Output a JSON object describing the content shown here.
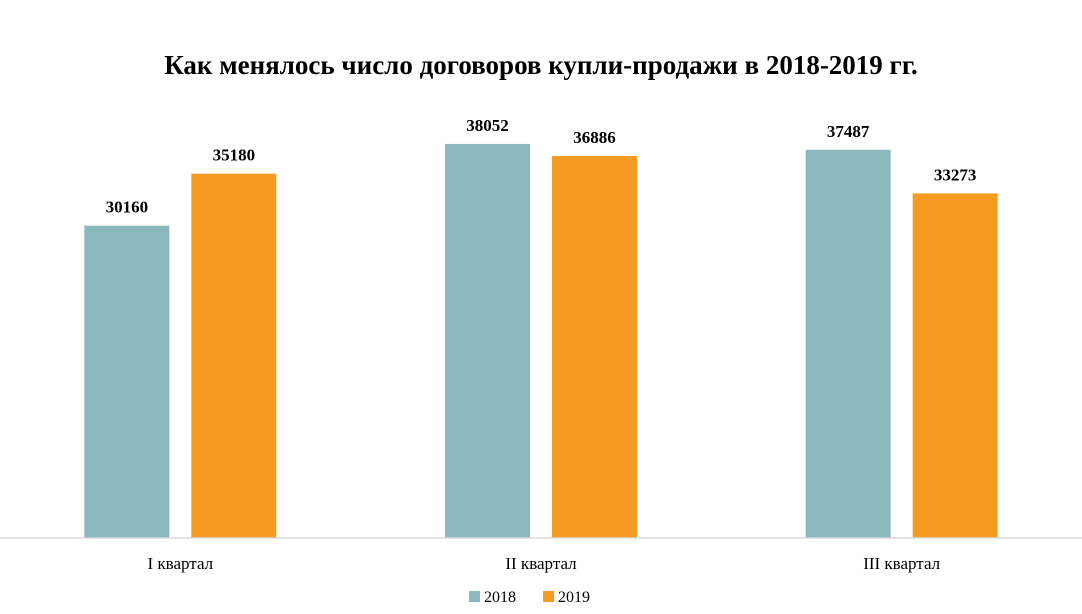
{
  "chart_data": {
    "type": "bar",
    "title": "Как менялось число договоров купли-продажи в 2018-2019 гг.",
    "xlabel": "",
    "ylabel": "",
    "categories": [
      "I квартал",
      "II квартал",
      "III квартал"
    ],
    "series": [
      {
        "name": "2018",
        "color": "#8AB8BD",
        "values": [
          30160,
          38052,
          37487
        ]
      },
      {
        "name": "2019",
        "color": "#F59B22",
        "values": [
          35180,
          36886,
          33273
        ]
      }
    ],
    "ylim": [
      0,
      45000
    ],
    "grid": false,
    "legend_position": "bottom",
    "data_labels": true
  }
}
